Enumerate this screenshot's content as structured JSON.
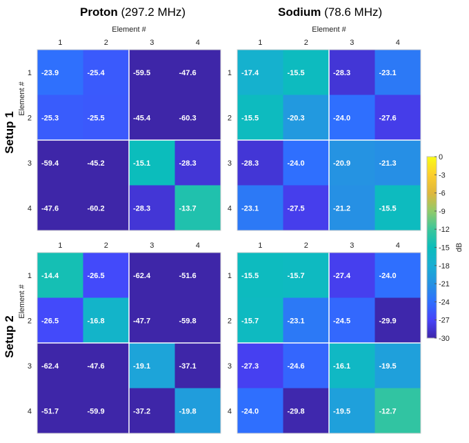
{
  "figure": {
    "columns": [
      {
        "name": "Proton",
        "freq": "(297.2 MHz)"
      },
      {
        "name": "Sodium",
        "freq": "(78.6 MHz)"
      }
    ],
    "rows": [
      "Setup 1",
      "Setup 2"
    ]
  },
  "chart_data": [
    {
      "type": "heatmap",
      "setup": "Setup 1",
      "nucleus": "Proton",
      "xlabel": "Element #",
      "ylabel": "Element #",
      "xticks": [
        "1",
        "2",
        "3",
        "4"
      ],
      "yticks": [
        "1",
        "2",
        "3",
        "4"
      ],
      "values": [
        [
          -23.9,
          -25.4,
          -59.5,
          -47.6
        ],
        [
          -25.3,
          -25.5,
          -45.4,
          -60.3
        ],
        [
          -59.4,
          -45.2,
          -15.1,
          -28.3
        ],
        [
          -47.6,
          -60.2,
          -28.3,
          -13.7
        ]
      ],
      "labels": [
        [
          "-23.9",
          "-25.4",
          "-59.5",
          "-47.6"
        ],
        [
          "-25.3",
          "-25.5",
          "-45.4",
          "-60.3"
        ],
        [
          "-59.4",
          "-45.2",
          "-15.1",
          "-28.3"
        ],
        [
          "-47.6",
          "-60.2",
          "-28.3",
          "-13.7"
        ]
      ]
    },
    {
      "type": "heatmap",
      "setup": "Setup 1",
      "nucleus": "Sodium",
      "xlabel": "Element #",
      "ylabel": "",
      "xticks": [
        "1",
        "2",
        "3",
        "4"
      ],
      "yticks": [
        "1",
        "2",
        "3",
        "4"
      ],
      "values": [
        [
          -17.4,
          -15.5,
          -28.3,
          -23.1
        ],
        [
          -15.5,
          -20.3,
          -24.0,
          -27.6
        ],
        [
          -28.3,
          -24.0,
          -20.9,
          -21.3
        ],
        [
          -23.1,
          -27.5,
          -21.2,
          -15.5
        ]
      ],
      "labels": [
        [
          "-17.4",
          "-15.5",
          "-28.3",
          "-23.1"
        ],
        [
          "-15.5",
          "-20.3",
          "-24.0",
          "-27.6"
        ],
        [
          "-28.3",
          "-24.0",
          "-20.9",
          "-21.3"
        ],
        [
          "-23.1",
          "-27.5",
          "-21.2",
          "-15.5"
        ]
      ]
    },
    {
      "type": "heatmap",
      "setup": "Setup 2",
      "nucleus": "Proton",
      "xlabel": "",
      "ylabel": "Element #",
      "xticks": [
        "1",
        "2",
        "3",
        "4"
      ],
      "yticks": [
        "1",
        "2",
        "3",
        "4"
      ],
      "values": [
        [
          -14.4,
          -26.5,
          -62.4,
          -51.6
        ],
        [
          -26.5,
          -16.8,
          -47.7,
          -59.8
        ],
        [
          -62.4,
          -47.6,
          -19.1,
          -37.1
        ],
        [
          -51.7,
          -59.9,
          -37.2,
          -19.8
        ]
      ],
      "labels": [
        [
          "-14.4",
          "-26.5",
          "-62.4",
          "-51.6"
        ],
        [
          "-26.5",
          "-16.8",
          "-47.7",
          "-59.8"
        ],
        [
          "-62.4",
          "-47.6",
          "-19.1",
          "-37.1"
        ],
        [
          "-51.7",
          "-59.9",
          "-37.2",
          "-19.8"
        ]
      ]
    },
    {
      "type": "heatmap",
      "setup": "Setup 2",
      "nucleus": "Sodium",
      "xlabel": "",
      "ylabel": "",
      "xticks": [
        "1",
        "2",
        "3",
        "4"
      ],
      "yticks": [
        "1",
        "2",
        "3",
        "4"
      ],
      "values": [
        [
          -15.5,
          -15.7,
          -27.4,
          -24.0
        ],
        [
          -15.7,
          -23.1,
          -24.5,
          -29.9
        ],
        [
          -27.3,
          -24.6,
          -16.1,
          -19.5
        ],
        [
          -24.0,
          -29.8,
          -19.5,
          -12.7
        ]
      ],
      "labels": [
        [
          "-15.5",
          "-15.7",
          "-27.4",
          "-24.0"
        ],
        [
          "-15.7",
          "-23.1",
          "-24.5",
          "-29.9"
        ],
        [
          "-27.3",
          "-24.6",
          "-16.1",
          "-19.5"
        ],
        [
          "-24.0",
          "-29.8",
          "-19.5",
          "-12.7"
        ]
      ]
    }
  ],
  "colorbar": {
    "label": "dB",
    "min": -30,
    "max": 0,
    "ticks": [
      0,
      -3,
      -6,
      -9,
      -12,
      -15,
      -18,
      -21,
      -24,
      -27,
      -30
    ],
    "tick_labels": [
      "0",
      "-3",
      "-6",
      "-9",
      "-12",
      "-15",
      "-18",
      "-21",
      "-24",
      "-27",
      "-30"
    ],
    "colormap": [
      "#3e26a8",
      "#4743f9",
      "#2f6ffe",
      "#2592e2",
      "#18aed3",
      "#0bbdbb",
      "#3cc69a",
      "#91ca6a",
      "#dfb73c",
      "#fcce2e",
      "#f9fb15"
    ]
  }
}
